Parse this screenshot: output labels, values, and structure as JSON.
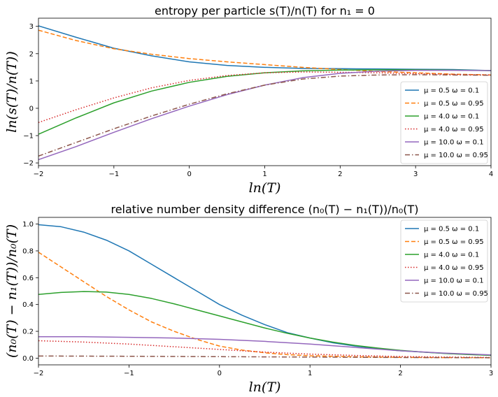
{
  "chart_data": [
    {
      "type": "line",
      "title": "entropy per particle s(T)/n(T) for n₁ = 0",
      "xlabel": "ln(T)",
      "ylabel": "ln(s(T)/n(T))",
      "xlim": [
        -2,
        4
      ],
      "ylim": [
        -2.1,
        3.3
      ],
      "xticks": [
        -2,
        -1,
        0,
        1,
        2,
        3,
        4
      ],
      "xtick_labels": [
        "−2",
        "−1",
        "0",
        "1",
        "2",
        "3",
        "4"
      ],
      "yticks": [
        -2,
        -1,
        0,
        1,
        2,
        3
      ],
      "ytick_labels": [
        "−2",
        "−1",
        "0",
        "1",
        "2",
        "3"
      ],
      "grid": false,
      "legend": "lower-right",
      "series": [
        {
          "name": "μ = 0.5 ω = 0.1",
          "color": "#1f77b4",
          "dash": "solid",
          "x": [
            -2,
            -1.5,
            -1,
            -0.5,
            0,
            0.5,
            1,
            1.5,
            2,
            2.5,
            3,
            3.5,
            4
          ],
          "y": [
            3.02,
            2.6,
            2.2,
            1.92,
            1.7,
            1.57,
            1.5,
            1.46,
            1.45,
            1.44,
            1.43,
            1.42,
            1.38
          ]
        },
        {
          "name": "μ = 0.5 ω = 0.95",
          "color": "#ff7f0e",
          "dash": "dashed",
          "x": [
            -2,
            -1.5,
            -1,
            -0.5,
            0,
            0.5,
            1,
            1.5,
            2,
            2.5,
            3,
            3.5,
            4
          ],
          "y": [
            2.86,
            2.48,
            2.18,
            1.98,
            1.82,
            1.7,
            1.6,
            1.5,
            1.42,
            1.35,
            1.3,
            1.25,
            1.22
          ]
        },
        {
          "name": "μ = 4.0 ω = 0.1",
          "color": "#2ca02c",
          "dash": "solid",
          "x": [
            -2,
            -1.5,
            -1,
            -0.5,
            0,
            0.5,
            1,
            1.5,
            2,
            2.5,
            3,
            3.5,
            4
          ],
          "y": [
            -0.95,
            -0.35,
            0.2,
            0.63,
            0.95,
            1.17,
            1.3,
            1.37,
            1.4,
            1.41,
            1.41,
            1.4,
            1.38
          ]
        },
        {
          "name": "μ = 4.0 ω = 0.95",
          "color": "#d62728",
          "dash": "dotted",
          "x": [
            -2,
            -1.5,
            -1,
            -0.5,
            0,
            0.5,
            1,
            1.5,
            2,
            2.5,
            3,
            3.5,
            4
          ],
          "y": [
            -0.52,
            -0.05,
            0.38,
            0.75,
            1.02,
            1.2,
            1.3,
            1.33,
            1.32,
            1.3,
            1.27,
            1.24,
            1.22
          ]
        },
        {
          "name": "μ = 10.0 ω = 0.1",
          "color": "#9467bd",
          "dash": "solid",
          "x": [
            -2,
            -1.5,
            -1,
            -0.5,
            0,
            0.5,
            1,
            1.5,
            2,
            2.5,
            3,
            3.5,
            4
          ],
          "y": [
            -1.88,
            -1.4,
            -0.88,
            -0.38,
            0.08,
            0.5,
            0.85,
            1.12,
            1.28,
            1.36,
            1.39,
            1.39,
            1.38
          ]
        },
        {
          "name": "μ = 10.0 ω = 0.95",
          "color": "#8c564b",
          "dash": "dashdot",
          "x": [
            -2,
            -1.5,
            -1,
            -0.5,
            0,
            0.5,
            1,
            1.5,
            2,
            2.5,
            3,
            3.5,
            4
          ],
          "y": [
            -1.75,
            -1.25,
            -0.75,
            -0.28,
            0.15,
            0.53,
            0.85,
            1.07,
            1.18,
            1.22,
            1.23,
            1.22,
            1.21
          ]
        }
      ]
    },
    {
      "type": "line",
      "title": "relative number density difference (n₀(T) − n₁(T))/n₀(T)",
      "xlabel": "ln(T)",
      "ylabel": "(n₀(T) − n₁(T))/n₀(T)",
      "xlim": [
        -2,
        3
      ],
      "ylim": [
        -0.05,
        1.05
      ],
      "xticks": [
        -2,
        -1,
        0,
        1,
        2,
        3
      ],
      "xtick_labels": [
        "−2",
        "−1",
        "0",
        "1",
        "2",
        "3"
      ],
      "yticks": [
        0.0,
        0.2,
        0.4,
        0.6,
        0.8,
        1.0
      ],
      "ytick_labels": [
        "0.0",
        "0.2",
        "0.4",
        "0.6",
        "0.8",
        "1.0"
      ],
      "grid": false,
      "legend": "upper-right",
      "series": [
        {
          "name": "μ = 0.5 ω = 0.1",
          "color": "#1f77b4",
          "dash": "solid",
          "x": [
            -2,
            -1.75,
            -1.5,
            -1.25,
            -1,
            -0.75,
            -0.5,
            -0.25,
            0,
            0.25,
            0.5,
            0.75,
            1,
            1.25,
            1.5,
            1.75,
            2,
            2.25,
            2.5,
            2.75,
            3
          ],
          "y": [
            0.995,
            0.98,
            0.94,
            0.88,
            0.8,
            0.7,
            0.6,
            0.5,
            0.4,
            0.32,
            0.25,
            0.19,
            0.15,
            0.115,
            0.09,
            0.07,
            0.055,
            0.045,
            0.035,
            0.028,
            0.022
          ]
        },
        {
          "name": "μ = 0.5 ω = 0.95",
          "color": "#ff7f0e",
          "dash": "dashed",
          "x": [
            -2,
            -1.75,
            -1.5,
            -1.25,
            -1,
            -0.75,
            -0.5,
            -0.25,
            0,
            0.25,
            0.5,
            0.75,
            1,
            1.5,
            2,
            2.5,
            3
          ],
          "y": [
            0.79,
            0.68,
            0.57,
            0.46,
            0.36,
            0.27,
            0.2,
            0.14,
            0.09,
            0.06,
            0.04,
            0.026,
            0.018,
            0.01,
            0.006,
            0.004,
            0.003
          ]
        },
        {
          "name": "μ = 4.0 ω = 0.1",
          "color": "#2ca02c",
          "dash": "solid",
          "x": [
            -2,
            -1.75,
            -1.5,
            -1.25,
            -1,
            -0.75,
            -0.5,
            -0.25,
            0,
            0.25,
            0.5,
            0.75,
            1,
            1.25,
            1.5,
            1.75,
            2,
            2.25,
            2.5,
            2.75,
            3
          ],
          "y": [
            0.475,
            0.49,
            0.497,
            0.493,
            0.475,
            0.445,
            0.405,
            0.36,
            0.315,
            0.27,
            0.225,
            0.185,
            0.15,
            0.12,
            0.095,
            0.075,
            0.058,
            0.045,
            0.035,
            0.027,
            0.021
          ]
        },
        {
          "name": "μ = 4.0 ω = 0.95",
          "color": "#d62728",
          "dash": "dotted",
          "x": [
            -2,
            -1.5,
            -1,
            -0.5,
            0,
            0.5,
            1,
            1.5,
            2,
            2.5,
            3
          ],
          "y": [
            0.13,
            0.12,
            0.105,
            0.085,
            0.065,
            0.045,
            0.03,
            0.02,
            0.012,
            0.008,
            0.005
          ]
        },
        {
          "name": "μ = 10.0 ω = 0.1",
          "color": "#9467bd",
          "dash": "solid",
          "x": [
            -2,
            -1.5,
            -1,
            -0.5,
            0,
            0.5,
            1,
            1.5,
            2,
            2.5,
            3
          ],
          "y": [
            0.16,
            0.16,
            0.155,
            0.15,
            0.14,
            0.125,
            0.105,
            0.08,
            0.055,
            0.037,
            0.024
          ]
        },
        {
          "name": "μ = 10.0 ω = 0.95",
          "color": "#8c564b",
          "dash": "dashdot",
          "x": [
            -2,
            -1,
            0,
            1,
            2,
            3
          ],
          "y": [
            0.016,
            0.014,
            0.011,
            0.008,
            0.005,
            0.003
          ]
        }
      ]
    }
  ]
}
